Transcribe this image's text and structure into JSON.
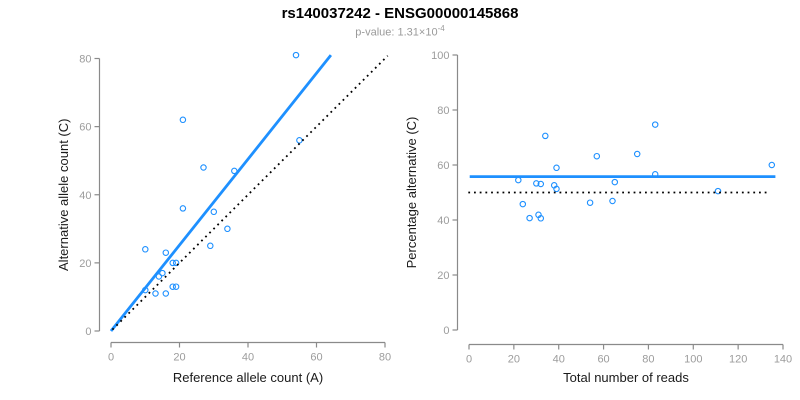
{
  "header": {
    "title": "rs140037242 - ENSG00000145868",
    "pvalue_label": "p-value: 1.31×10",
    "pvalue_exponent": "-4"
  },
  "colors": {
    "accent_blue": "#1E90FF",
    "point_blue": "#1E90FF",
    "dotted_black": "#000000",
    "axis_gray": "#8a8a8a",
    "tick_gray": "#9c9c9c",
    "label_black": "#1a1a1a"
  },
  "chart_data": [
    {
      "type": "scatter",
      "title": "rs140037242 - ENSG00000145868",
      "subtitle": "p-value: 1.31×10^-4",
      "xlabel": "Reference allele count (A)",
      "ylabel": "Alternative allele count (C)",
      "xlim": [
        0,
        80
      ],
      "ylim": [
        0,
        80
      ],
      "xticks": [
        0,
        20,
        40,
        60,
        80
      ],
      "yticks": [
        0,
        20,
        40,
        60,
        80
      ],
      "grid": false,
      "legend": false,
      "points": [
        [
          10,
          12
        ],
        [
          13,
          11
        ],
        [
          16,
          11
        ],
        [
          14,
          16
        ],
        [
          15,
          17
        ],
        [
          18,
          13
        ],
        [
          19,
          13
        ],
        [
          10,
          24
        ],
        [
          18,
          20
        ],
        [
          19,
          20
        ],
        [
          16,
          23
        ],
        [
          29,
          25
        ],
        [
          21,
          36
        ],
        [
          34,
          30
        ],
        [
          30,
          35
        ],
        [
          27,
          48
        ],
        [
          21,
          62
        ],
        [
          36,
          47
        ],
        [
          55,
          56
        ],
        [
          54,
          81
        ]
      ],
      "lines": [
        {
          "name": "regression-line",
          "style": "solid",
          "color": "#1E90FF",
          "x": [
            0,
            64.2
          ],
          "y": [
            0,
            81
          ]
        },
        {
          "name": "identity-line",
          "style": "dotted",
          "color": "#000000",
          "x": [
            0.4,
            80.8
          ],
          "y": [
            0.4,
            80.8
          ]
        }
      ]
    },
    {
      "type": "scatter",
      "xlabel": "Total number of reads",
      "ylabel": "Percentage alternative (C)",
      "xlim": [
        0,
        140
      ],
      "ylim": [
        0,
        100
      ],
      "xticks": [
        0,
        20,
        40,
        60,
        80,
        100,
        120,
        140
      ],
      "yticks": [
        0,
        20,
        40,
        60,
        80,
        100
      ],
      "grid": false,
      "legend": false,
      "points": [
        [
          22,
          54.5
        ],
        [
          24,
          45.8
        ],
        [
          27,
          40.7
        ],
        [
          30,
          53.3
        ],
        [
          32,
          53.1
        ],
        [
          31,
          41.9
        ],
        [
          32,
          40.6
        ],
        [
          34,
          70.6
        ],
        [
          38,
          52.6
        ],
        [
          39,
          51.3
        ],
        [
          39,
          59.0
        ],
        [
          54,
          46.3
        ],
        [
          57,
          63.2
        ],
        [
          64,
          46.9
        ],
        [
          65,
          53.8
        ],
        [
          75,
          64.0
        ],
        [
          83,
          74.7
        ],
        [
          83,
          56.6
        ],
        [
          111,
          50.5
        ],
        [
          135,
          60.0
        ]
      ],
      "lines": [
        {
          "name": "mean-percentage-line",
          "style": "solid",
          "color": "#1E90FF",
          "x": [
            0.3,
            136.6
          ],
          "y": [
            55.8,
            55.8
          ]
        },
        {
          "name": "null-50-line",
          "style": "dotted",
          "color": "#000000",
          "x": [
            -0.3,
            133.8
          ],
          "y": [
            50,
            50
          ]
        }
      ]
    }
  ]
}
